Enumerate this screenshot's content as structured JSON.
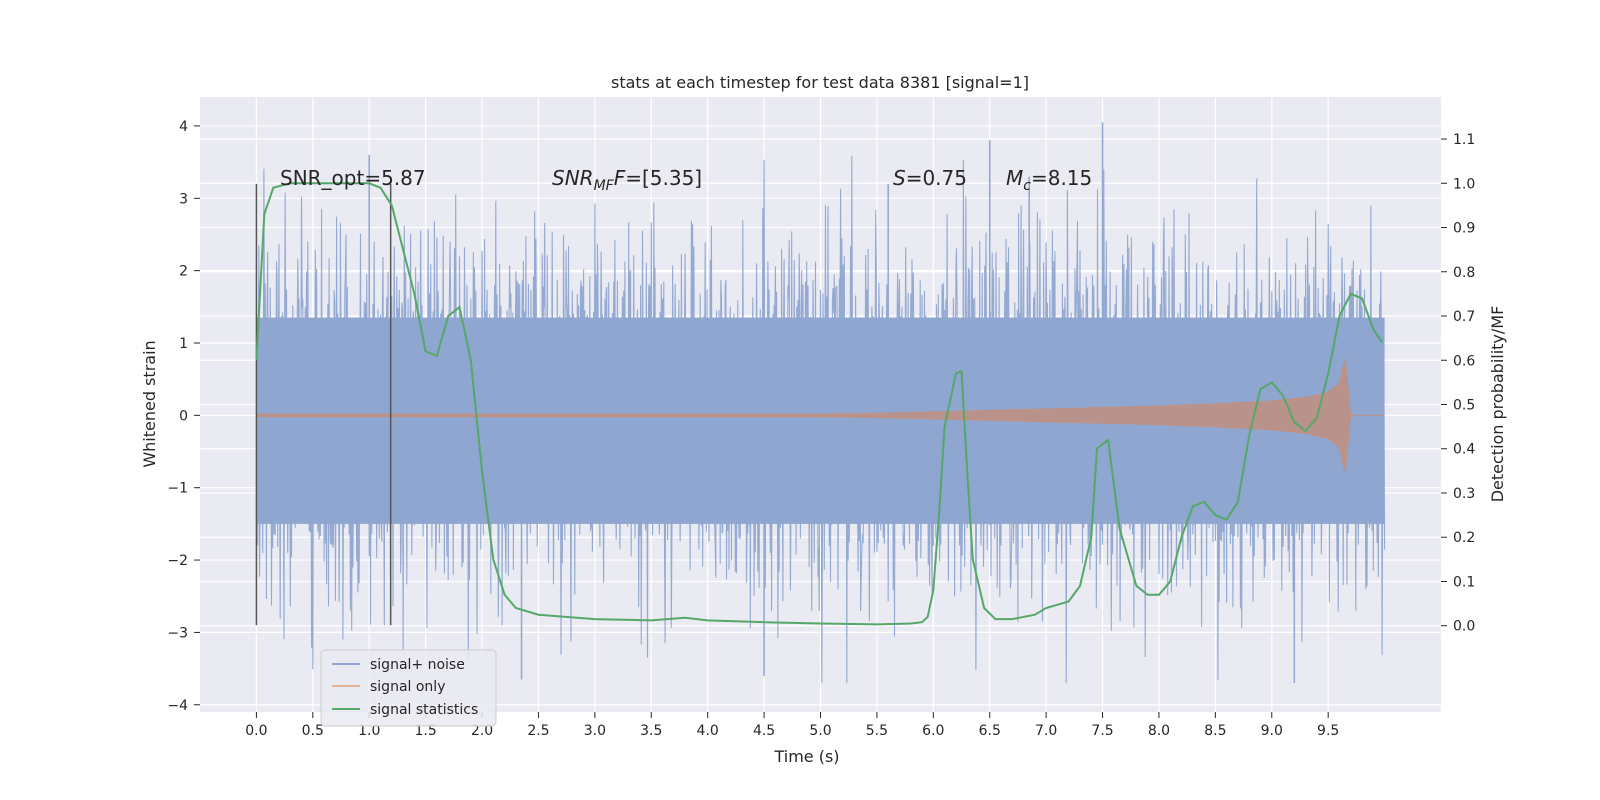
{
  "chart_data": {
    "type": "line",
    "title": "stats at each timestep for test data 8381 [signal=1]",
    "xlabel": "Time (s)",
    "ylabel_left": "Whitened strain",
    "ylabel_right": "Detection probability/MF",
    "xlim": [
      -0.5,
      10.5
    ],
    "ylim_left": [
      -4.1,
      4.4
    ],
    "ylim_right": [
      -0.195,
      1.195
    ],
    "x_ticks": [
      "0.0",
      "0.5",
      "1.0",
      "1.5",
      "2.0",
      "2.5",
      "3.0",
      "3.5",
      "4.0",
      "4.5",
      "5.0",
      "5.5",
      "6.0",
      "6.5",
      "7.0",
      "7.5",
      "8.0",
      "8.5",
      "9.0",
      "9.5"
    ],
    "y_left_ticks": [
      "4",
      "3",
      "2",
      "1",
      "0",
      "−1",
      "−2",
      "−3",
      "−4"
    ],
    "y_right_ticks": [
      "1.1",
      "1.0",
      "0.9",
      "0.8",
      "0.7",
      "0.6",
      "0.5",
      "0.4",
      "0.3",
      "0.2",
      "0.1",
      "0.0"
    ],
    "grid": true,
    "annotations": {
      "snr_opt": "SNR_opt=5.87",
      "snr_mf_base": "SNR",
      "snr_mf_sub": "MF",
      "snr_mf_rest": "=[5.35]",
      "s_base": "S",
      "s_rest": "=0.75",
      "mc_base": "M",
      "mc_sub": "c",
      "mc_rest": "=8.15"
    },
    "vertical_markers": [
      {
        "x": 0.0,
        "y_range": [
          -2.9,
          3.2
        ]
      },
      {
        "x": 1.19,
        "y_range": [
          -2.9,
          3.2
        ]
      }
    ],
    "series": [
      {
        "name": "signal+ noise",
        "color": "#8fa6d1",
        "x_range": [
          0.0,
          10.0
        ],
        "typical_amplitude": 1.5,
        "max": 4.05,
        "min": -3.7
      },
      {
        "name": "signal only",
        "color": "#dd8452",
        "x_range": [
          0.0,
          9.7
        ],
        "envelope_x": [
          0.0,
          5.0,
          5.5,
          6.0,
          6.5,
          7.0,
          7.5,
          8.0,
          8.5,
          9.0,
          9.3,
          9.5,
          9.6,
          9.65,
          9.7
        ],
        "envelope": [
          0.02,
          0.02,
          0.03,
          0.05,
          0.07,
          0.09,
          0.11,
          0.13,
          0.16,
          0.2,
          0.25,
          0.32,
          0.45,
          0.8,
          0.0
        ]
      },
      {
        "name": "signal statistics",
        "color": "#55a868",
        "axis": "right",
        "x": [
          0.0,
          0.07,
          0.15,
          0.3,
          0.5,
          0.8,
          1.0,
          1.1,
          1.2,
          1.3,
          1.4,
          1.5,
          1.6,
          1.7,
          1.8,
          1.9,
          2.0,
          2.1,
          2.2,
          2.3,
          2.5,
          3.0,
          3.5,
          3.8,
          4.0,
          4.5,
          5.0,
          5.5,
          5.8,
          5.9,
          5.95,
          6.0,
          6.05,
          6.1,
          6.2,
          6.25,
          6.3,
          6.35,
          6.45,
          6.55,
          6.7,
          6.9,
          7.0,
          7.2,
          7.3,
          7.4,
          7.45,
          7.55,
          7.65,
          7.8,
          7.9,
          8.0,
          8.1,
          8.2,
          8.3,
          8.4,
          8.5,
          8.6,
          8.7,
          8.8,
          8.9,
          9.0,
          9.1,
          9.2,
          9.3,
          9.4,
          9.5,
          9.6,
          9.7,
          9.8,
          9.9,
          9.98
        ],
        "y": [
          0.6,
          0.93,
          0.99,
          1.0,
          1.0,
          1.0,
          1.0,
          0.99,
          0.95,
          0.85,
          0.75,
          0.62,
          0.61,
          0.7,
          0.72,
          0.6,
          0.35,
          0.15,
          0.07,
          0.04,
          0.025,
          0.015,
          0.012,
          0.018,
          0.012,
          0.008,
          0.005,
          0.003,
          0.005,
          0.008,
          0.02,
          0.08,
          0.25,
          0.45,
          0.57,
          0.575,
          0.35,
          0.15,
          0.04,
          0.015,
          0.015,
          0.025,
          0.04,
          0.055,
          0.09,
          0.2,
          0.4,
          0.42,
          0.22,
          0.09,
          0.07,
          0.07,
          0.1,
          0.2,
          0.27,
          0.28,
          0.25,
          0.24,
          0.28,
          0.43,
          0.535,
          0.55,
          0.52,
          0.46,
          0.44,
          0.47,
          0.57,
          0.7,
          0.75,
          0.74,
          0.67,
          0.64
        ]
      }
    ],
    "legend": {
      "placement": "lower-left",
      "entries": [
        "signal+ noise",
        "signal only",
        "signal statistics"
      ]
    }
  }
}
